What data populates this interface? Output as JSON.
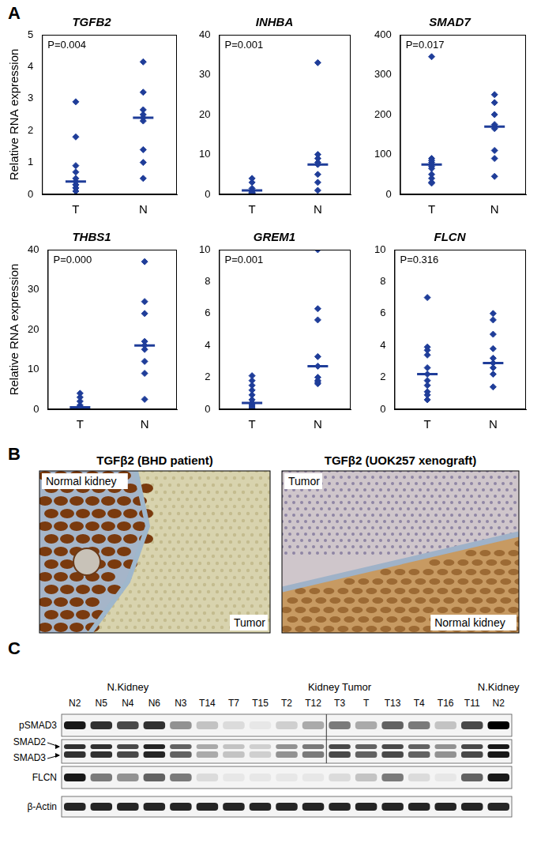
{
  "figure_labels": [
    "A",
    "B",
    "C"
  ],
  "chart_data": [
    {
      "type": "scatter",
      "title": "TGFB2",
      "ylabel": "Relative RNA expression",
      "annotation": "P=0.004",
      "categories": [
        "T",
        "N"
      ],
      "values": [
        [
          2.9,
          1.8,
          0.9,
          0.7,
          0.5,
          0.4,
          0.3,
          0.3,
          0.2,
          0.2,
          0.1
        ],
        [
          4.15,
          3.2,
          2.65,
          2.5,
          2.4,
          2.3,
          1.4,
          1.0,
          0.5
        ]
      ],
      "medians": [
        0.4,
        2.4
      ],
      "color": "#1f3d99",
      "marker": "diamond",
      "ylim": [
        0,
        5
      ],
      "yticks": [
        0,
        1,
        2,
        3,
        4,
        5
      ],
      "grid": false
    },
    {
      "type": "scatter",
      "title": "INHBA",
      "annotation": "P=0.001",
      "categories": [
        "T",
        "N"
      ],
      "values": [
        [
          4,
          3,
          1.5,
          1,
          0.8,
          0.5,
          0.3,
          0.2,
          0.1
        ],
        [
          33,
          10,
          9,
          8,
          7.5,
          5,
          3,
          1
        ]
      ],
      "medians": [
        1,
        7.5
      ],
      "color": "#1f3d99",
      "marker": "diamond",
      "ylim": [
        0,
        40
      ],
      "yticks": [
        0,
        10,
        20,
        30,
        40
      ],
      "grid": false
    },
    {
      "type": "scatter",
      "title": "SMAD7",
      "annotation": "P=0.017",
      "categories": [
        "T",
        "N"
      ],
      "values": [
        [
          345,
          90,
          85,
          80,
          75,
          70,
          65,
          50,
          40,
          30,
          28
        ],
        [
          250,
          230,
          200,
          175,
          170,
          165,
          110,
          90,
          45
        ]
      ],
      "medians": [
        75,
        170
      ],
      "color": "#1f3d99",
      "marker": "diamond",
      "ylim": [
        0,
        400
      ],
      "yticks": [
        0,
        100,
        200,
        300,
        400
      ],
      "grid": false
    },
    {
      "type": "scatter",
      "title": "THBS1",
      "ylabel": "Relative RNA expression",
      "annotation": "P=0.000",
      "categories": [
        "T",
        "N"
      ],
      "values": [
        [
          4,
          3,
          2,
          1,
          0.5,
          0.3,
          0.2,
          0.1,
          0.1
        ],
        [
          37,
          27,
          24,
          17,
          16,
          15,
          12,
          9,
          2.5
        ]
      ],
      "medians": [
        0.5,
        16
      ],
      "color": "#1f3d99",
      "marker": "diamond",
      "ylim": [
        0,
        40
      ],
      "yticks": [
        0,
        10,
        20,
        30,
        40
      ],
      "grid": false
    },
    {
      "type": "scatter",
      "title": "GREM1",
      "annotation": "P=0.001",
      "categories": [
        "T",
        "N"
      ],
      "values": [
        [
          2.1,
          1.8,
          1.5,
          1.2,
          0.9,
          0.6,
          0.4,
          0.3,
          0.2,
          0.1,
          0.05
        ],
        [
          10,
          6.3,
          5.6,
          3.3,
          2.7,
          2,
          1.8,
          1.7,
          1.6
        ]
      ],
      "medians": [
        0.4,
        2.7
      ],
      "color": "#1f3d99",
      "marker": "diamond",
      "ylim": [
        0,
        10
      ],
      "yticks": [
        0,
        2,
        4,
        6,
        8,
        10
      ],
      "grid": false
    },
    {
      "type": "scatter",
      "title": "FLCN",
      "annotation": "P=0.316",
      "categories": [
        "T",
        "N"
      ],
      "values": [
        [
          7,
          3.9,
          3.7,
          3.4,
          2.6,
          2.2,
          1.8,
          1.5,
          1.1,
          0.9,
          0.6
        ],
        [
          6,
          5.6,
          4.7,
          3.8,
          3.2,
          2.9,
          2.6,
          2.2,
          1.4
        ]
      ],
      "medians": [
        2.2,
        2.9
      ],
      "color": "#1f3d99",
      "marker": "diamond",
      "ylim": [
        0,
        10
      ],
      "yticks": [
        0,
        2,
        4,
        6,
        8,
        10
      ],
      "grid": false
    }
  ],
  "panel_b": {
    "images": [
      {
        "caption": "TGFβ2 (BHD patient)",
        "labels": [
          "Normal kidney",
          "Tumor"
        ]
      },
      {
        "caption": "TGFβ2 (UOK257 xenograft)",
        "labels": [
          "Tumor",
          "Normal kidney"
        ]
      }
    ]
  },
  "panel_c": {
    "groups": [
      {
        "label": "N.Kidney",
        "lanes": [
          "N2",
          "N5",
          "N4",
          "N6",
          "N3"
        ]
      },
      {
        "label": "Kidney Tumor",
        "lanes": [
          "T14",
          "T7",
          "T15",
          "T2",
          "T12",
          "T3",
          "T",
          "T13",
          "T4",
          "T16",
          "T11"
        ]
      },
      {
        "label": "N.Kidney",
        "lanes": [
          "N2"
        ]
      }
    ],
    "rows": [
      {
        "labels": [
          "pSMAD3"
        ],
        "bands": [
          0.9,
          0.8,
          0.7,
          0.8,
          0.4,
          0.2,
          0.1,
          0.05,
          0.15,
          0.3,
          0.5,
          0.3,
          0.6,
          0.5,
          0.2,
          0.7,
          1
        ]
      },
      {
        "labels": [
          "SMAD2",
          "SMAD3"
        ],
        "bands": [
          0.8,
          0.8,
          0.7,
          0.85,
          0.6,
          0.3,
          0.2,
          0.15,
          0.4,
          0.5,
          0.7,
          0.6,
          0.7,
          0.6,
          0.4,
          0.7,
          0.9
        ]
      },
      {
        "labels": [
          "FLCN"
        ],
        "bands": [
          0.9,
          0.5,
          0.4,
          0.6,
          0.5,
          0.1,
          0.05,
          0.05,
          0.05,
          0.05,
          0.1,
          0.2,
          0.5,
          0.1,
          0.05,
          0.6,
          0.9
        ]
      },
      {
        "labels": [
          "β-Actin"
        ],
        "bands": [
          0.85,
          0.85,
          0.85,
          0.85,
          0.85,
          0.85,
          0.85,
          0.85,
          0.85,
          0.85,
          0.85,
          0.85,
          0.85,
          0.85,
          0.85,
          0.85,
          0.85
        ]
      }
    ]
  }
}
